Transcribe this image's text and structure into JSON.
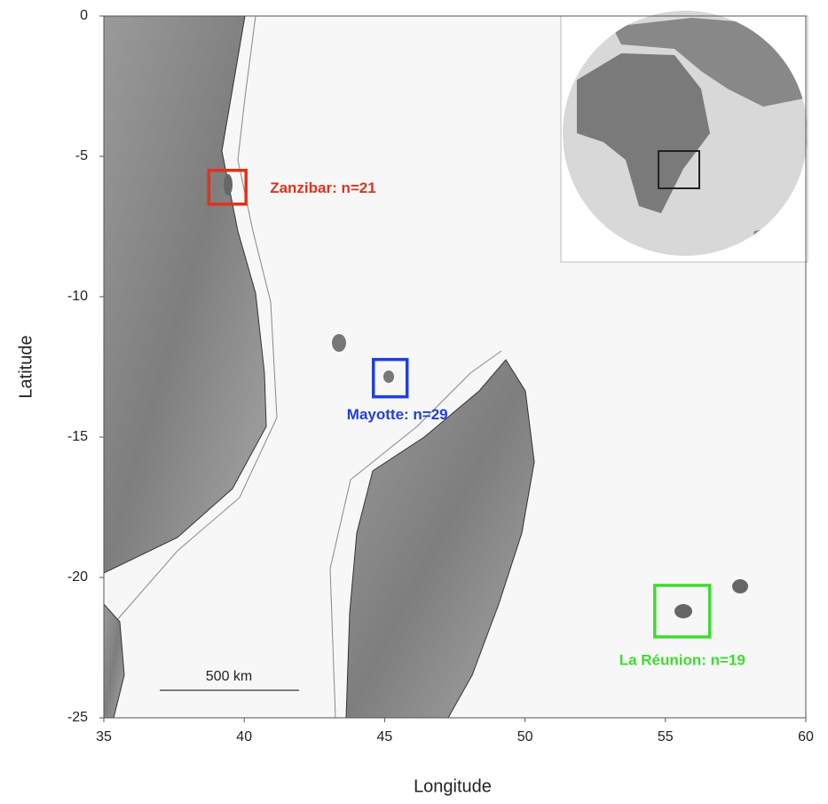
{
  "map": {
    "xlabel": "Longitude",
    "ylabel": "Latitude",
    "xlim": [
      35,
      60
    ],
    "ylim": [
      -25,
      0
    ],
    "xticks": [
      35,
      40,
      45,
      50,
      55,
      60
    ],
    "yticks": [
      0,
      -5,
      -10,
      -15,
      -20,
      -25
    ],
    "scale_bar": "500 km",
    "sites": [
      {
        "label": "Zanzibar: n=21",
        "color": "#e0321e",
        "lon": 39.4,
        "lat": -6.1
      },
      {
        "label": "Mayotte: n=29",
        "color": "#1f3fe0",
        "lon": 45.2,
        "lat": -12.9
      },
      {
        "label": "La Réunion: n=19",
        "color": "#3ddc2e",
        "lon": 55.6,
        "lat": -21.2
      }
    ]
  }
}
